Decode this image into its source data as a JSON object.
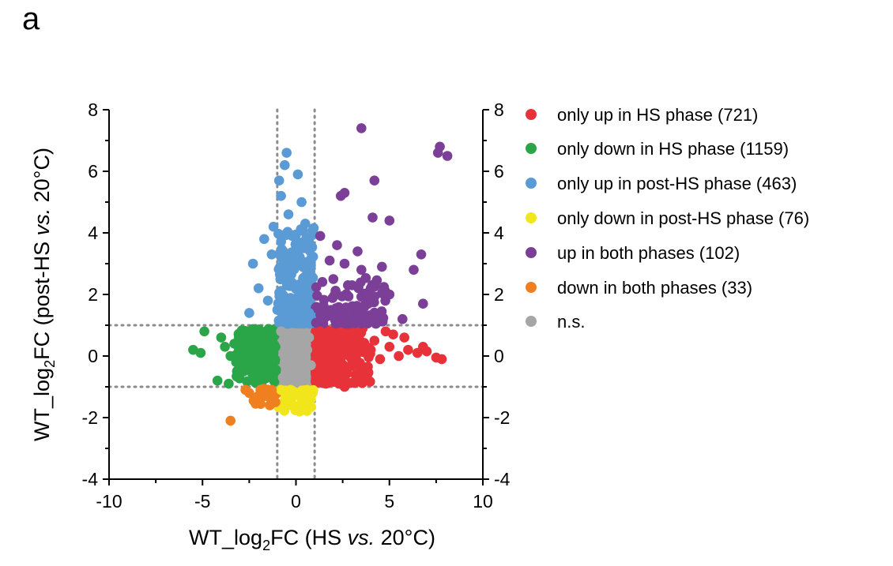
{
  "panel_label": "a",
  "colors": {
    "only_up_hs": "#e8323a",
    "only_down_hs": "#2aa548",
    "only_up_post": "#5b9bd5",
    "only_down_post": "#f1e61c",
    "up_both": "#7b3f98",
    "down_both": "#f0801f",
    "ns": "#a6a6a6"
  },
  "chart_data": {
    "type": "scatter",
    "xlabel_pre": "WT_log",
    "xlabel_sub": "2",
    "xlabel_mid": "FC (HS ",
    "xlabel_italic": "vs.",
    "xlabel_post": " 20°C)",
    "ylabel_pre": "WT_log",
    "ylabel_sub": "2",
    "ylabel_mid": "FC (post-HS ",
    "ylabel_italic": "vs.",
    "ylabel_post": " 20°C)",
    "xlim": [
      -10,
      10
    ],
    "ylim": [
      -4,
      8
    ],
    "xticks": [
      -10,
      -5,
      0,
      5,
      10
    ],
    "yticks": [
      -4,
      -2,
      0,
      2,
      4,
      6,
      8
    ],
    "threshold_lines": {
      "x": [
        -1,
        1
      ],
      "y": [
        -1,
        1
      ]
    },
    "legend_position": "right",
    "series": [
      {
        "key": "only_up_hs",
        "name": "only up in HS phase (721)",
        "color": "#e8323a",
        "points": [
          [
            1.2,
            0.3
          ],
          [
            1.5,
            -0.2
          ],
          [
            2.0,
            0.5
          ],
          [
            2.5,
            0.1
          ],
          [
            3.0,
            -0.3
          ],
          [
            3.5,
            0.4
          ],
          [
            4.0,
            0.2
          ],
          [
            4.5,
            -0.1
          ],
          [
            5.0,
            0.3
          ],
          [
            5.5,
            0.0
          ],
          [
            6.0,
            0.2
          ],
          [
            6.5,
            0.1
          ],
          [
            7.0,
            0.15
          ],
          [
            7.5,
            -0.05
          ],
          [
            7.8,
            -0.1
          ],
          [
            6.8,
            0.3
          ],
          [
            5.8,
            0.6
          ],
          [
            5.2,
            0.7
          ],
          [
            4.8,
            0.8
          ],
          [
            2.5,
            -0.8
          ],
          [
            2.3,
            -0.9
          ],
          [
            2.6,
            -1.0
          ],
          [
            3.2,
            -0.6
          ],
          [
            1.8,
            -0.5
          ],
          [
            1.3,
            0.8
          ],
          [
            2.8,
            0.7
          ],
          [
            3.8,
            -0.4
          ],
          [
            4.2,
            0.5
          ],
          [
            1.6,
            0.0
          ],
          [
            2.2,
            -0.3
          ]
        ]
      },
      {
        "key": "only_down_hs",
        "name": "only down in HS phase (1159)",
        "color": "#2aa548",
        "points": [
          [
            -5.5,
            0.2
          ],
          [
            -5.1,
            0.1
          ],
          [
            -4.9,
            0.8
          ],
          [
            -4.0,
            0.6
          ],
          [
            -3.8,
            0.3
          ],
          [
            -3.5,
            0.0
          ],
          [
            -3.2,
            -0.2
          ],
          [
            -3.0,
            0.5
          ],
          [
            -2.8,
            -0.5
          ],
          [
            -2.5,
            0.2
          ],
          [
            -2.2,
            -0.8
          ],
          [
            -2.0,
            0.7
          ],
          [
            -1.8,
            0.0
          ],
          [
            -1.5,
            -0.3
          ],
          [
            -1.3,
            0.4
          ],
          [
            -4.2,
            -0.8
          ],
          [
            -3.6,
            -0.9
          ],
          [
            -2.6,
            0.8
          ],
          [
            -2.9,
            -0.2
          ],
          [
            -1.9,
            -0.6
          ],
          [
            -1.6,
            0.8
          ],
          [
            -3.3,
            0.4
          ],
          [
            -2.4,
            -0.4
          ],
          [
            -1.2,
            0.1
          ]
        ]
      },
      {
        "key": "only_up_post",
        "name": "only up in post-HS phase (463)",
        "color": "#5b9bd5",
        "points": [
          [
            -0.5,
            6.6
          ],
          [
            -0.6,
            6.2
          ],
          [
            0.1,
            5.9
          ],
          [
            -0.9,
            5.7
          ],
          [
            -0.8,
            5.2
          ],
          [
            0.3,
            5.0
          ],
          [
            -0.4,
            4.6
          ],
          [
            0.5,
            4.3
          ],
          [
            -1.2,
            4.2
          ],
          [
            -1.7,
            3.8
          ],
          [
            -2.3,
            3.0
          ],
          [
            -2.0,
            2.2
          ],
          [
            -1.5,
            1.8
          ],
          [
            -1.0,
            1.5
          ],
          [
            -0.5,
            2.5
          ],
          [
            0.0,
            3.0
          ],
          [
            0.4,
            3.5
          ],
          [
            -0.2,
            3.9
          ],
          [
            0.2,
            2.0
          ],
          [
            -0.7,
            1.2
          ],
          [
            0.7,
            1.4
          ],
          [
            -0.3,
            1.7
          ],
          [
            -2.5,
            1.4
          ],
          [
            -1.3,
            3.3
          ]
        ]
      },
      {
        "key": "only_down_post",
        "name": "only down in post-HS phase (76)",
        "color": "#f1e61c",
        "points": [
          [
            -0.8,
            -1.1
          ],
          [
            -0.5,
            -1.3
          ],
          [
            -0.2,
            -1.6
          ],
          [
            0.0,
            -1.2
          ],
          [
            0.3,
            -1.5
          ],
          [
            0.6,
            -1.1
          ],
          [
            0.8,
            -1.4
          ],
          [
            -0.6,
            -1.7
          ],
          [
            0.2,
            -1.8
          ],
          [
            0.5,
            -1.7
          ],
          [
            -0.3,
            -1.1
          ],
          [
            0.9,
            -1.2
          ]
        ]
      },
      {
        "key": "up_both",
        "name": "up in both phases (102)",
        "color": "#7b3f98",
        "points": [
          [
            3.5,
            7.4
          ],
          [
            7.7,
            6.8
          ],
          [
            7.6,
            6.6
          ],
          [
            8.1,
            6.5
          ],
          [
            4.2,
            5.7
          ],
          [
            2.4,
            5.2
          ],
          [
            2.6,
            5.3
          ],
          [
            4.1,
            4.5
          ],
          [
            5.0,
            4.4
          ],
          [
            1.3,
            3.9
          ],
          [
            2.2,
            3.6
          ],
          [
            3.3,
            3.4
          ],
          [
            6.7,
            3.3
          ],
          [
            1.8,
            3.1
          ],
          [
            2.6,
            3.0
          ],
          [
            3.5,
            2.8
          ],
          [
            4.6,
            2.9
          ],
          [
            6.3,
            2.8
          ],
          [
            2.0,
            2.5
          ],
          [
            3.0,
            2.3
          ],
          [
            4.0,
            2.2
          ],
          [
            5.0,
            2.0
          ],
          [
            6.8,
            1.7
          ],
          [
            1.5,
            1.5
          ],
          [
            2.8,
            1.4
          ],
          [
            3.6,
            1.6
          ],
          [
            4.4,
            1.3
          ],
          [
            5.7,
            1.2
          ]
        ]
      },
      {
        "key": "down_both",
        "name": "down in both phases (33)",
        "color": "#f0801f",
        "points": [
          [
            -3.5,
            -2.1
          ],
          [
            -2.5,
            -1.2
          ],
          [
            -2.2,
            -1.4
          ],
          [
            -1.9,
            -1.1
          ],
          [
            -1.6,
            -1.3
          ],
          [
            -1.3,
            -1.1
          ],
          [
            -1.1,
            -1.5
          ],
          [
            -2.7,
            -1.1
          ],
          [
            -1.4,
            -1.6
          ],
          [
            -2.0,
            -1.5
          ]
        ]
      },
      {
        "key": "ns",
        "name": "n.s.",
        "color": "#a6a6a6",
        "points": [
          [
            -0.8,
            0.8
          ],
          [
            -0.5,
            0.3
          ],
          [
            -0.2,
            -0.4
          ],
          [
            0.0,
            0.5
          ],
          [
            0.3,
            -0.8
          ],
          [
            0.6,
            0.2
          ],
          [
            0.8,
            -0.3
          ],
          [
            -0.7,
            -0.7
          ],
          [
            0.4,
            0.7
          ],
          [
            -0.3,
            0.0
          ],
          [
            0.1,
            -0.1
          ],
          [
            0.7,
            0.6
          ],
          [
            -0.6,
            -0.2
          ],
          [
            0.2,
            0.3
          ]
        ]
      }
    ]
  }
}
